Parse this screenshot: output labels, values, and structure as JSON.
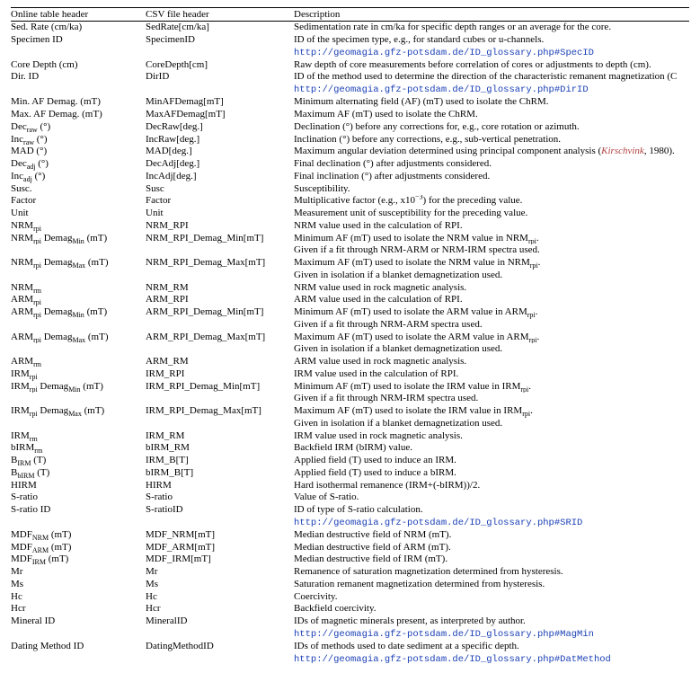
{
  "header": {
    "online": "Online table header",
    "csv": "CSV file header",
    "desc": "Description"
  },
  "rows": [
    {
      "online": "Sed. Rate (cm/ka)",
      "csv": "SedRate[cm/ka]",
      "desc": "Sedimentation rate in cm/ka for specific depth ranges or an average for the core."
    },
    {
      "online": "Specimen ID",
      "csv": "SpecimenID",
      "desc": "ID of the specimen type, e.g., for standard cubes or u-channels."
    },
    {
      "online": "",
      "csv": "",
      "desc_url": "http://geomagia.gfz-potsdam.de/ID_glossary.php#SpecID"
    },
    {
      "online": "Core Depth (cm)",
      "csv": "CoreDepth[cm]",
      "desc": "Raw depth of core measurements before correlation of cores or adjustments to depth (cm)."
    },
    {
      "online": "Dir. ID",
      "csv": "DirID",
      "desc": "ID of the method used to determine the direction of the characteristic remanent magnetization (C"
    },
    {
      "online": "",
      "csv": "",
      "desc_url": "http://geomagia.gfz-potsdam.de/ID_glossary.php#DirID"
    },
    {
      "online": "Min. AF Demag. (mT)",
      "csv": "MinAFDemag[mT]",
      "desc": "Minimum alternating field (AF) (mT) used to isolate the ChRM."
    },
    {
      "online": "Max. AF Demag. (mT)",
      "csv": "MaxAFDemag[mT]",
      "desc": "Maximum AF (mT) used to isolate the ChRM."
    },
    {
      "online_html": "Dec<sub>raw</sub> (°)",
      "csv": "DecRaw[deg.]",
      "desc": "Declination (°) before any corrections for, e.g., core rotation or azimuth."
    },
    {
      "online_html": "Inc<sub>raw</sub> (°)",
      "csv": "IncRaw[deg.]",
      "desc": "Inclination (°) before any corrections, e.g., sub-vertical penetration."
    },
    {
      "online": "MAD (°)",
      "csv": "MAD[deg.]",
      "desc_html": "Maximum angular deviation determined using principal component analysis (<span class=\"cite\"><i>Kirschvink</i></span>, 1980)."
    },
    {
      "online_html": "Dec<sub>adj</sub> (°)",
      "csv": "DecAdj[deg.]",
      "desc": "Final declination (°) after adjustments considered."
    },
    {
      "online_html": "Inc<sub>adj</sub> (°)",
      "csv": "IncAdj[deg.]",
      "desc": "Final inclination (°) after adjustments considered."
    },
    {
      "online": "Susc.",
      "csv": "Susc",
      "desc": "Susceptibility."
    },
    {
      "online": "Factor",
      "csv": "Factor",
      "desc_html": "Multiplicative factor (e.g., x10<sup>−3</sup>) for the preceding value."
    },
    {
      "online": "Unit",
      "csv": "Unit",
      "desc": "Measurement unit of susceptibility for the preceding value."
    },
    {
      "online_html": "NRM<sub>rpi</sub>",
      "csv": "NRM_RPI",
      "desc": "NRM value used in the calculation of RPI."
    },
    {
      "online_html": "NRM<sub>rpi</sub> Demag<sub>Min</sub> (mT)",
      "csv": "NRM_RPI_Demag_Min[mT]",
      "desc_html": "Minimum AF (mT) used to isolate the NRM value in NRM<sub>rpi</sub>."
    },
    {
      "online": "",
      "csv": "",
      "desc": "Given if a fit through NRM-ARM or NRM-IRM spectra used."
    },
    {
      "online_html": "NRM<sub>rpi</sub> Demag<sub>Max</sub> (mT)",
      "csv": "NRM_RPI_Demag_Max[mT]",
      "desc_html": "Maximum AF (mT) used to isolate the NRM value in NRM<sub>rpi</sub>."
    },
    {
      "online": "",
      "csv": "",
      "desc": "Given in isolation if a blanket demagnetization used."
    },
    {
      "online_html": "NRM<sub>rm</sub>",
      "csv": "NRM_RM",
      "desc": "NRM value used in rock magnetic analysis."
    },
    {
      "online_html": "ARM<sub>rpi</sub>",
      "csv": "ARM_RPI",
      "desc": "ARM value used in the calculation of RPI."
    },
    {
      "online_html": "ARM<sub>rpi</sub> Demag<sub>Min</sub> (mT)",
      "csv": "ARM_RPI_Demag_Min[mT]",
      "desc_html": "Minimum AF (mT) used to isolate the ARM value in ARM<sub>rpi</sub>."
    },
    {
      "online": "",
      "csv": "",
      "desc": "Given if a fit through NRM-ARM spectra used."
    },
    {
      "online_html": "ARM<sub>rpi</sub> Demag<sub>Max</sub> (mT)",
      "csv": "ARM_RPI_Demag_Max[mT]",
      "desc_html": "Maximum AF (mT) used to isolate the ARM value in ARM<sub>rpi</sub>."
    },
    {
      "online": "",
      "csv": "",
      "desc": "Given in isolation if a blanket demagnetization used."
    },
    {
      "online_html": "ARM<sub>rm</sub>",
      "csv": "ARM_RM",
      "desc": "ARM value used in rock magnetic analysis."
    },
    {
      "online_html": "IRM<sub>rpi</sub>",
      "csv": "IRM_RPI",
      "desc": "IRM value used in the calculation of RPI."
    },
    {
      "online_html": "IRM<sub>rpi</sub> Demag<sub>Min</sub> (mT)",
      "csv": "IRM_RPI_Demag_Min[mT]",
      "desc_html": "Minimum AF (mT) used to isolate the IRM value in IRM<sub>rpi</sub>."
    },
    {
      "online": "",
      "csv": "",
      "desc": "Given if a fit through NRM-IRM spectra used."
    },
    {
      "online_html": "IRM<sub>rpi</sub> Demag<sub>Max</sub> (mT)",
      "csv": "IRM_RPI_Demag_Max[mT]",
      "desc_html": "Maximum AF (mT) used to isolate the IRM value in IRM<sub>rpi</sub>."
    },
    {
      "online": "",
      "csv": "",
      "desc": "Given in isolation if a blanket demagnetization used."
    },
    {
      "online_html": "IRM<sub>rm</sub>",
      "csv": "IRM_RM",
      "desc": "IRM value used in rock magnetic analysis."
    },
    {
      "online_html": "bIRM<sub>rm</sub>",
      "csv": "bIRM_RM",
      "desc": "Backfield IRM (bIRM) value."
    },
    {
      "online_html": "B<sub>IRM</sub> (T)",
      "csv": "IRM_B[T]",
      "desc": "Applied field (T) used to induce an IRM."
    },
    {
      "online_html": "B<sub>bIRM</sub> (T)",
      "csv": "bIRM_B[T]",
      "desc": "Applied field (T) used to induce a bIRM."
    },
    {
      "online": "HIRM",
      "csv": "HIRM",
      "desc": "Hard isothermal remanence (IRM+(-bIRM))/2."
    },
    {
      "online": "S-ratio",
      "csv": "S-ratio",
      "desc": "Value of S-ratio."
    },
    {
      "online": "S-ratio ID",
      "csv": "S-ratioID",
      "desc": "ID of type of S-ratio calculation."
    },
    {
      "online": "",
      "csv": "",
      "desc_url": "http://geomagia.gfz-potsdam.de/ID_glossary.php#SRID"
    },
    {
      "online_html": "MDF<sub>NRM</sub> (mT)",
      "csv": "MDF_NRM[mT]",
      "desc": "Median destructive field of NRM (mT)."
    },
    {
      "online_html": "MDF<sub>ARM</sub> (mT)",
      "csv": "MDF_ARM[mT]",
      "desc": "Median destructive field of ARM (mT)."
    },
    {
      "online_html": "MDF<sub>IRM</sub> (mT)",
      "csv": "MDF_IRM[mT]",
      "desc": "Median destructive field of IRM (mT)."
    },
    {
      "online": "Mr",
      "csv": "Mr",
      "desc": "Remanence of saturation magnetization determined from hysteresis."
    },
    {
      "online": "Ms",
      "csv": "Ms",
      "desc": "Saturation remanent magnetization determined from hysteresis."
    },
    {
      "online": "Hc",
      "csv": "Hc",
      "desc": "Coercivity."
    },
    {
      "online": "Hcr",
      "csv": "Hcr",
      "desc": "Backfield coercivity."
    },
    {
      "online": "Mineral ID",
      "csv": "MineralID",
      "desc": "IDs of magnetic minerals present, as interpreted by author."
    },
    {
      "online": "",
      "csv": "",
      "desc_url": "http://geomagia.gfz-potsdam.de/ID_glossary.php#MagMin"
    },
    {
      "online": "Dating Method ID",
      "csv": "DatingMethodID",
      "desc": "IDs of methods used to date sediment at a specific depth."
    },
    {
      "online": "",
      "csv": "",
      "desc_url": "http://geomagia.gfz-potsdam.de/ID_glossary.php#DatMethod"
    }
  ]
}
